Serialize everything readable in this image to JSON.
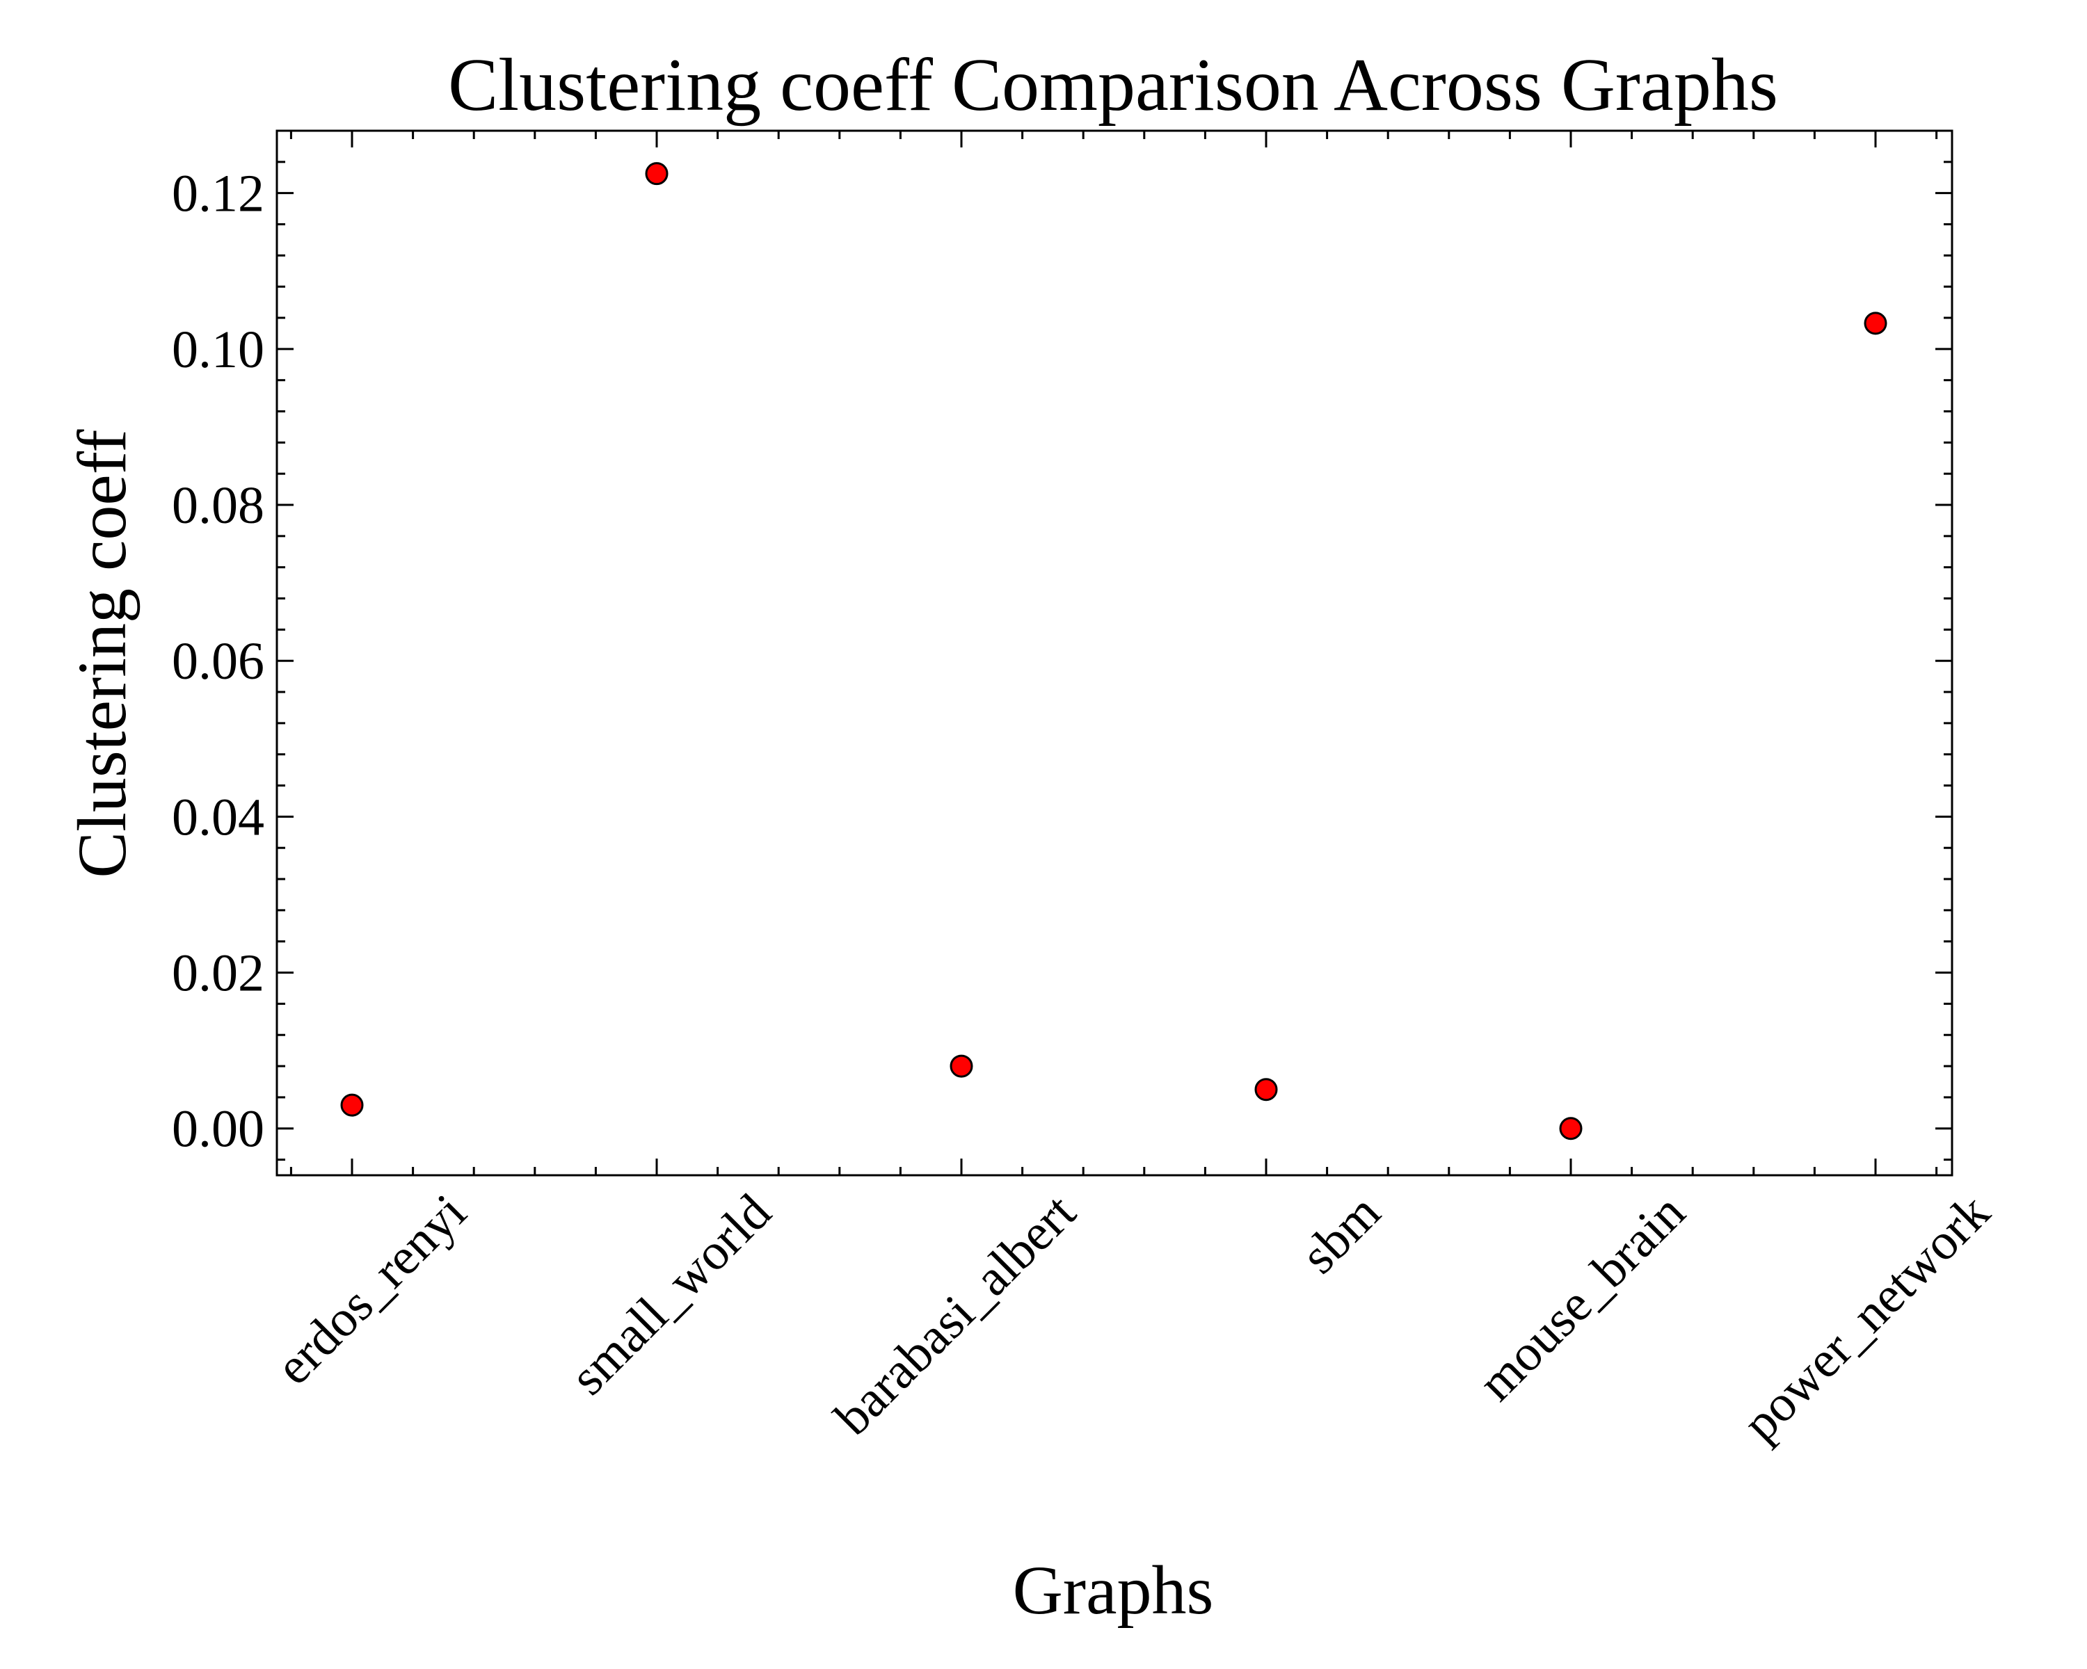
{
  "chart_data": {
    "type": "scatter",
    "title": "Clustering coeff Comparison Across Graphs",
    "xlabel": "Graphs",
    "ylabel": "Clustering coeff",
    "categories": [
      "erdos_renyi",
      "small_world",
      "barabasi_albert",
      "sbm",
      "mouse_brain",
      "power_network"
    ],
    "values": [
      0.003,
      0.1225,
      0.008,
      0.005,
      0.0,
      0.1033
    ],
    "ylim": [
      -0.006,
      0.128
    ],
    "yticks": [
      "0.00",
      "0.02",
      "0.04",
      "0.06",
      "0.08",
      "0.10",
      "0.12"
    ],
    "ytick_values": [
      0.0,
      0.02,
      0.04,
      0.06,
      0.08,
      0.1,
      0.12
    ],
    "marker_color": "#ff0000",
    "marker_edge": "#000000",
    "grid": false,
    "legend": "none"
  }
}
